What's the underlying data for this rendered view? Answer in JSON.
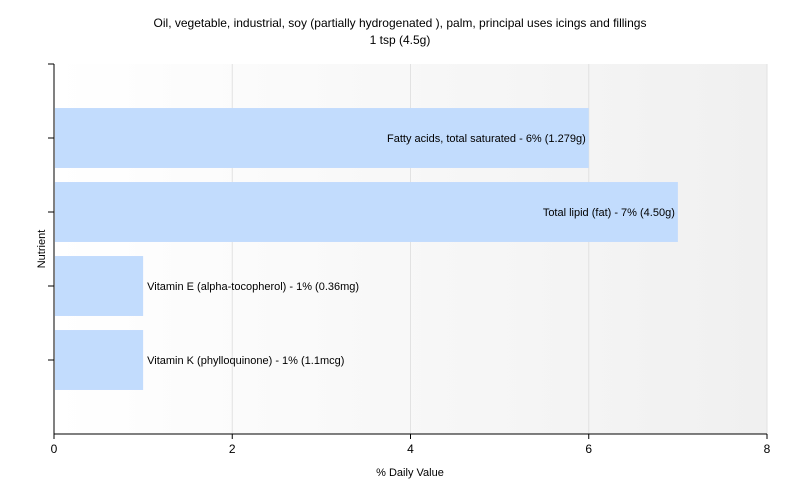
{
  "chart_data": {
    "type": "bar",
    "orientation": "horizontal",
    "title": "Oil, vegetable, industrial, soy (partially hydrogenated ), palm, principal uses icings and fillings",
    "subtitle": "1 tsp (4.5g)",
    "xlabel": "% Daily Value",
    "ylabel": "Nutrient",
    "xlim": [
      0,
      8
    ],
    "xticks": [
      0,
      2,
      4,
      6,
      8
    ],
    "grid": true,
    "legend": "none",
    "bar_color": "#c2dcfd",
    "categories": [
      "Fatty acids, total saturated",
      "Total lipid (fat)",
      "Vitamin E (alpha-tocopherol)",
      "Vitamin K (phylloquinone)"
    ],
    "values": [
      6,
      7,
      1,
      1
    ],
    "data_labels": [
      "Fatty acids, total saturated - 6% (1.279g)",
      "Total lipid (fat) - 7% (4.50g)",
      "Vitamin E (alpha-tocopherol) - 1% (0.36mg)",
      "Vitamin K (phylloquinone) - 1% (1.1mcg)"
    ]
  }
}
